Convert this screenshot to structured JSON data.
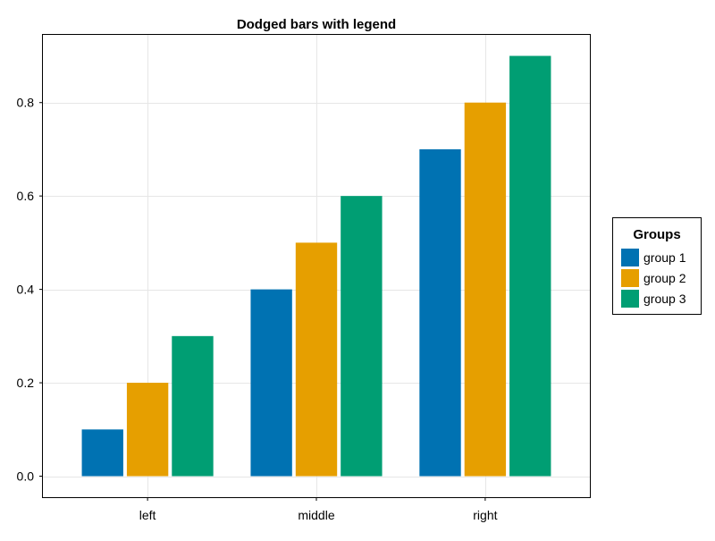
{
  "chart_data": {
    "type": "bar",
    "title": "Dodged bars with legend",
    "xlabel": "",
    "ylabel": "",
    "categories": [
      "left",
      "middle",
      "right"
    ],
    "series": [
      {
        "name": "group 1",
        "color": "#0072b2",
        "values": [
          0.1,
          0.4,
          0.7
        ]
      },
      {
        "name": "group 2",
        "color": "#e69f00",
        "values": [
          0.2,
          0.5,
          0.8
        ]
      },
      {
        "name": "group 3",
        "color": "#009e73",
        "values": [
          0.3,
          0.6,
          0.9
        ]
      }
    ],
    "ylim": [
      -0.045,
      0.945
    ],
    "yticks": [
      "0.0",
      "0.2",
      "0.4",
      "0.6",
      "0.8"
    ],
    "ytick_values": [
      0.0,
      0.2,
      0.4,
      0.6,
      0.8
    ],
    "grid": true,
    "legend": {
      "title": "Groups",
      "placement": "right"
    }
  }
}
